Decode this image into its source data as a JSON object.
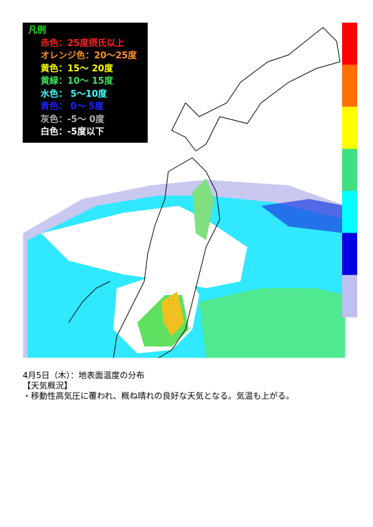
{
  "legend": {
    "title": "凡例",
    "entries": [
      {
        "text": "赤色：25度摂氏以上",
        "color": "#ff2020"
      },
      {
        "text": "オレンジ色：20～25度",
        "color": "#ff9020"
      },
      {
        "text": "黄色：15～ 20度",
        "color": "#ffff00"
      },
      {
        "text": "黄緑：10～ 15度",
        "color": "#40e060"
      },
      {
        "text": "水色： 5～10度",
        "color": "#40ffff"
      },
      {
        "text": "青色： 0～ 5度",
        "color": "#2020ff"
      },
      {
        "text": "灰色：-5～ 0度",
        "color": "#b0b0b0"
      },
      {
        "text": "白色：-5度以下",
        "color": "#ffffff"
      }
    ]
  },
  "color_bar": [
    "#ff0000",
    "#ff7000",
    "#ffff00",
    "#40e080",
    "#00ffff",
    "#0000e0",
    "#c0c0f0"
  ],
  "caption": {
    "date": "4月5日（木）：地表面温度の分布",
    "heading": "【天気概況】",
    "text": "・移動性高気圧に覆われ、概ね晴れの良好な天気となる。気温も上がる。"
  }
}
